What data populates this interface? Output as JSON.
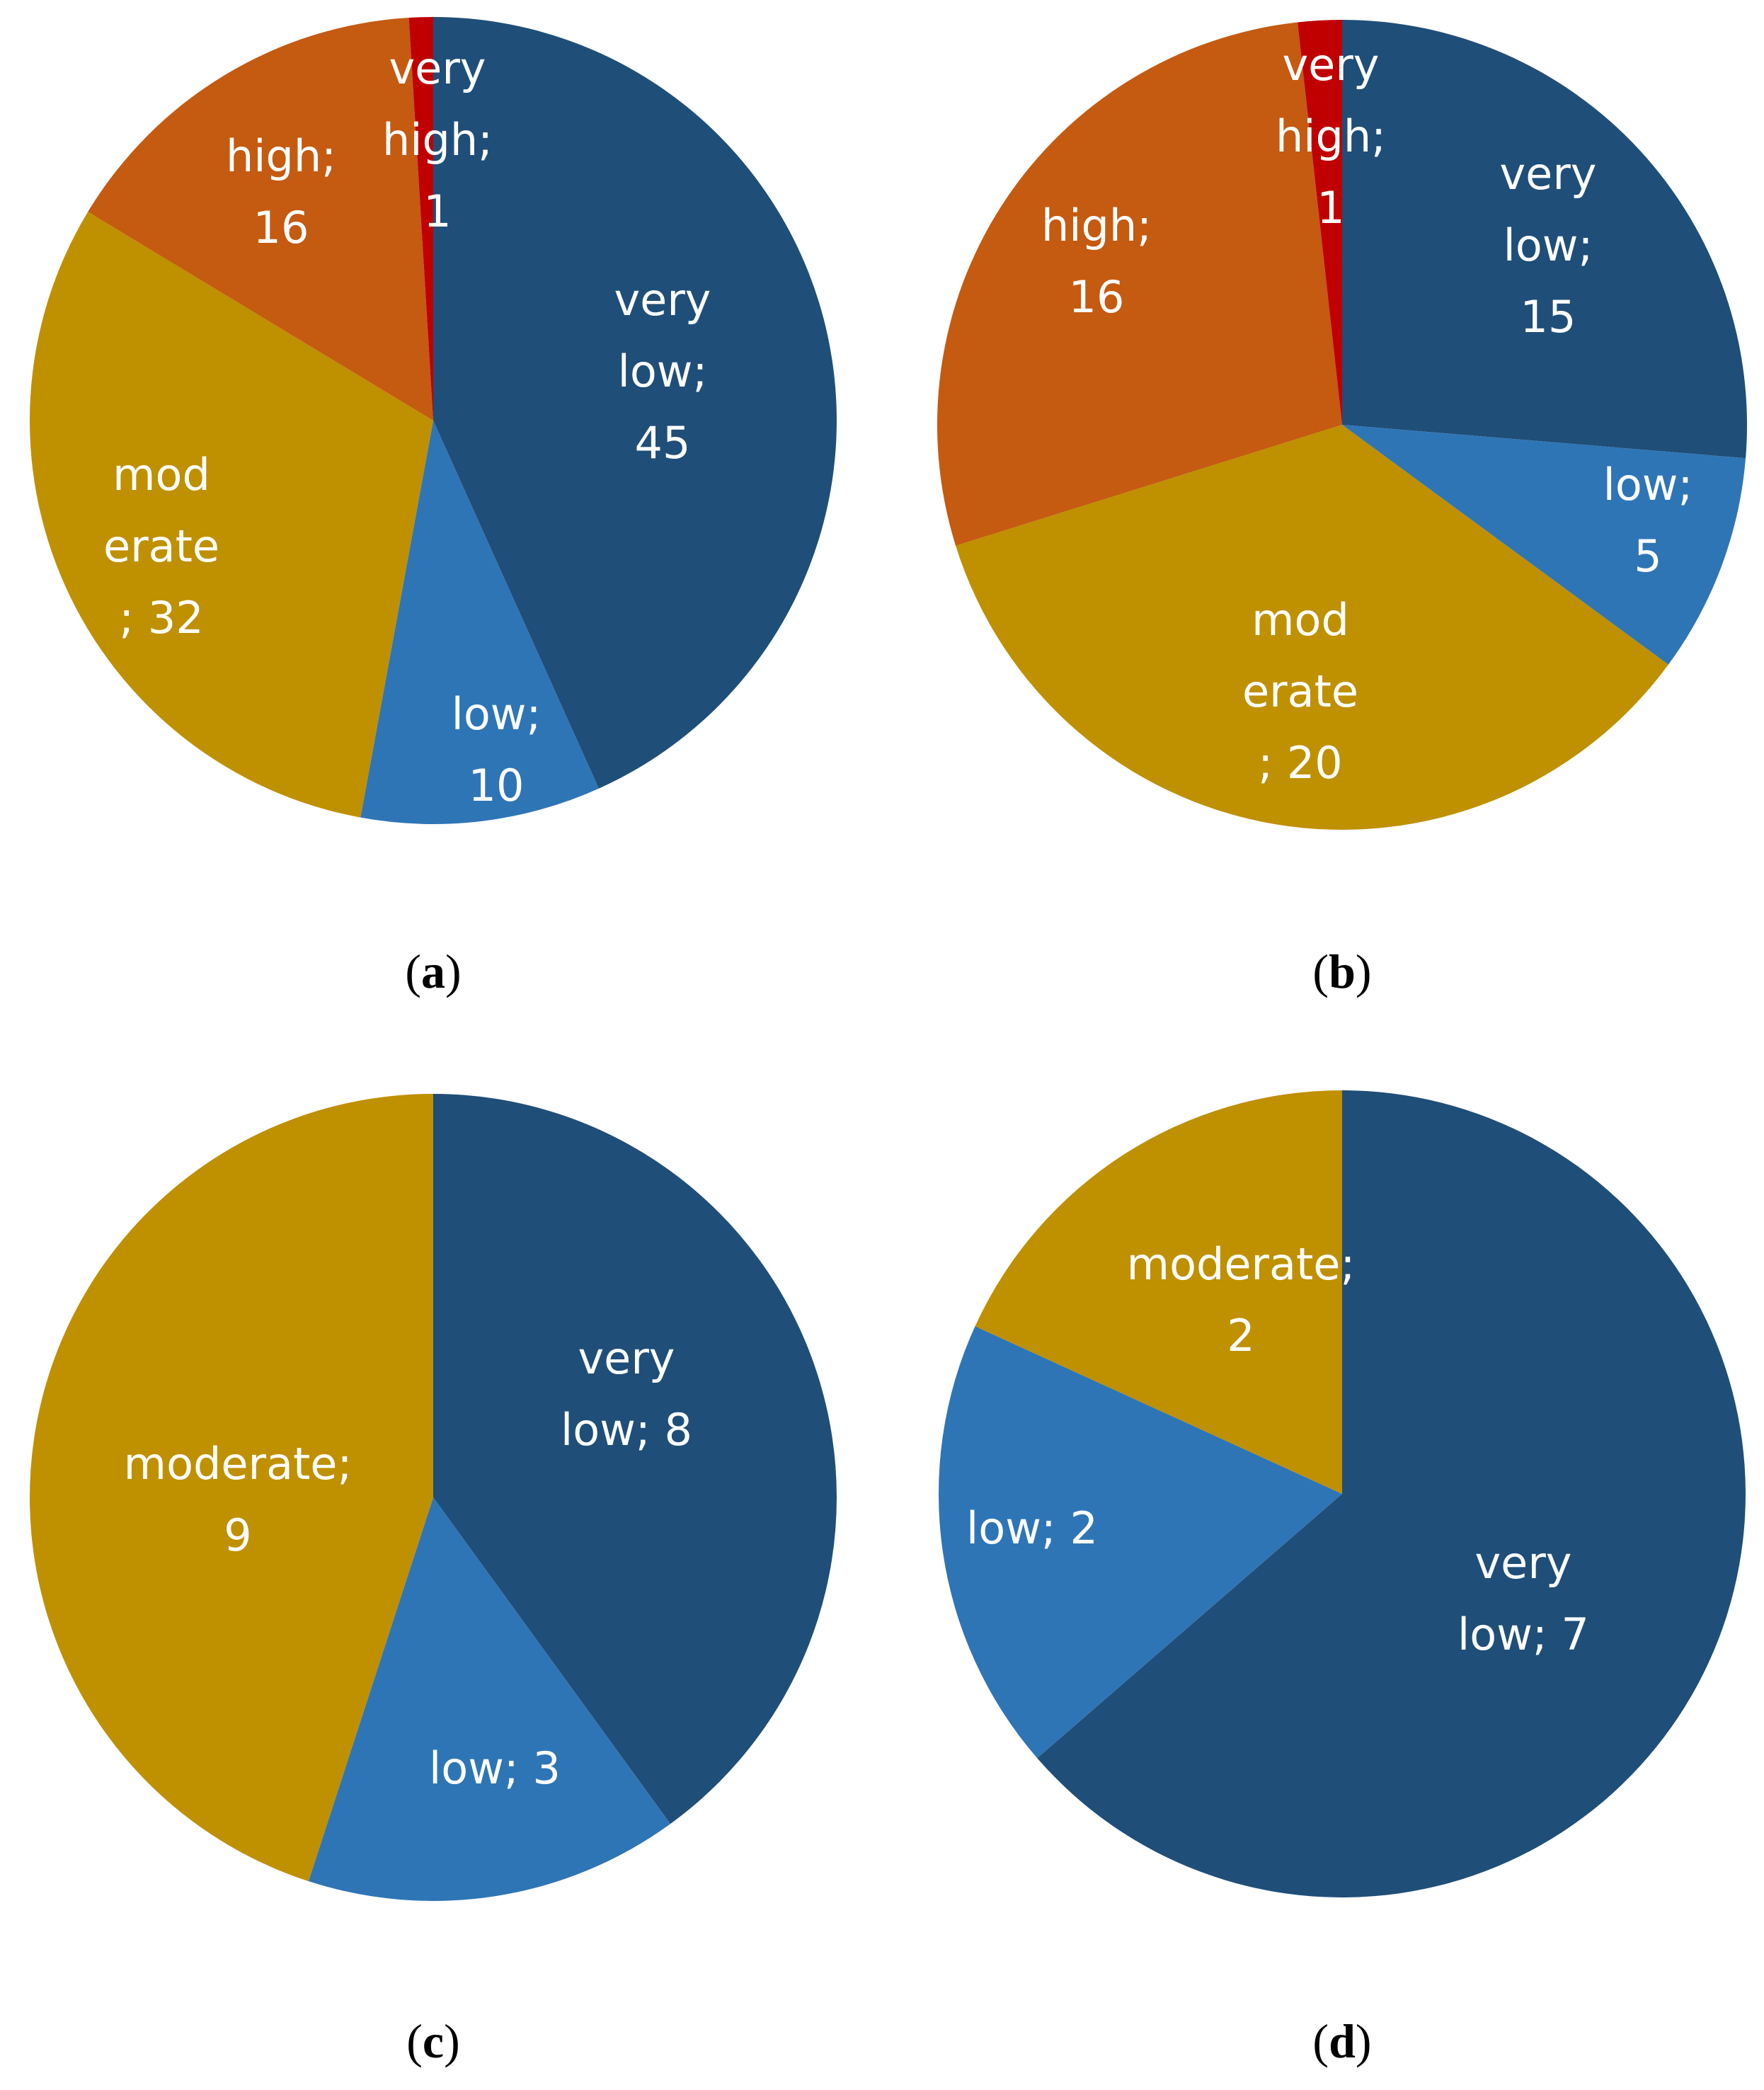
{
  "colors": {
    "very_low": "#1f4e79",
    "low": "#2e75b6",
    "moderate": "#bf9000",
    "high": "#c55a11",
    "very_high": "#c00000"
  },
  "chart_data": [
    {
      "type": "pie",
      "panel": "a",
      "caption": {
        "open": "(",
        "letter": "a",
        "close": ")"
      },
      "categories": [
        "very low",
        "low",
        "moderate",
        "high",
        "very high"
      ],
      "values": [
        45,
        10,
        32,
        16,
        1
      ],
      "labels": [
        [
          "very",
          "low;",
          "45"
        ],
        [
          "low;",
          "10"
        ],
        [
          "mod",
          "erate",
          "; 32"
        ],
        [
          "high;",
          "16"
        ],
        [
          "very",
          "high;",
          "1"
        ]
      ]
    },
    {
      "type": "pie",
      "panel": "b",
      "caption": {
        "open": "(",
        "letter": "b",
        "close": ")"
      },
      "categories": [
        "very low",
        "low",
        "moderate",
        "high",
        "very high"
      ],
      "values": [
        15,
        5,
        20,
        16,
        1
      ],
      "labels": [
        [
          "very",
          "low;",
          "15"
        ],
        [
          "low;",
          "5"
        ],
        [
          "mod",
          "erate",
          "; 20"
        ],
        [
          "high;",
          "16"
        ],
        [
          "very",
          "high;",
          "1"
        ]
      ]
    },
    {
      "type": "pie",
      "panel": "c",
      "caption": {
        "open": "(",
        "letter": "c",
        "close": ")"
      },
      "categories": [
        "very low",
        "low",
        "moderate"
      ],
      "values": [
        8,
        3,
        9
      ],
      "labels": [
        [
          "very",
          "low; 8"
        ],
        [
          "low; 3"
        ],
        [
          "moderate;",
          "9"
        ]
      ]
    },
    {
      "type": "pie",
      "panel": "d",
      "caption": {
        "open": "(",
        "letter": "d",
        "close": ")"
      },
      "categories": [
        "very low",
        "low",
        "moderate"
      ],
      "values": [
        7,
        2,
        2
      ],
      "labels": [
        [
          "very",
          "low; 7"
        ],
        [
          "low; 2"
        ],
        [
          "moderate;",
          "2"
        ]
      ]
    }
  ]
}
